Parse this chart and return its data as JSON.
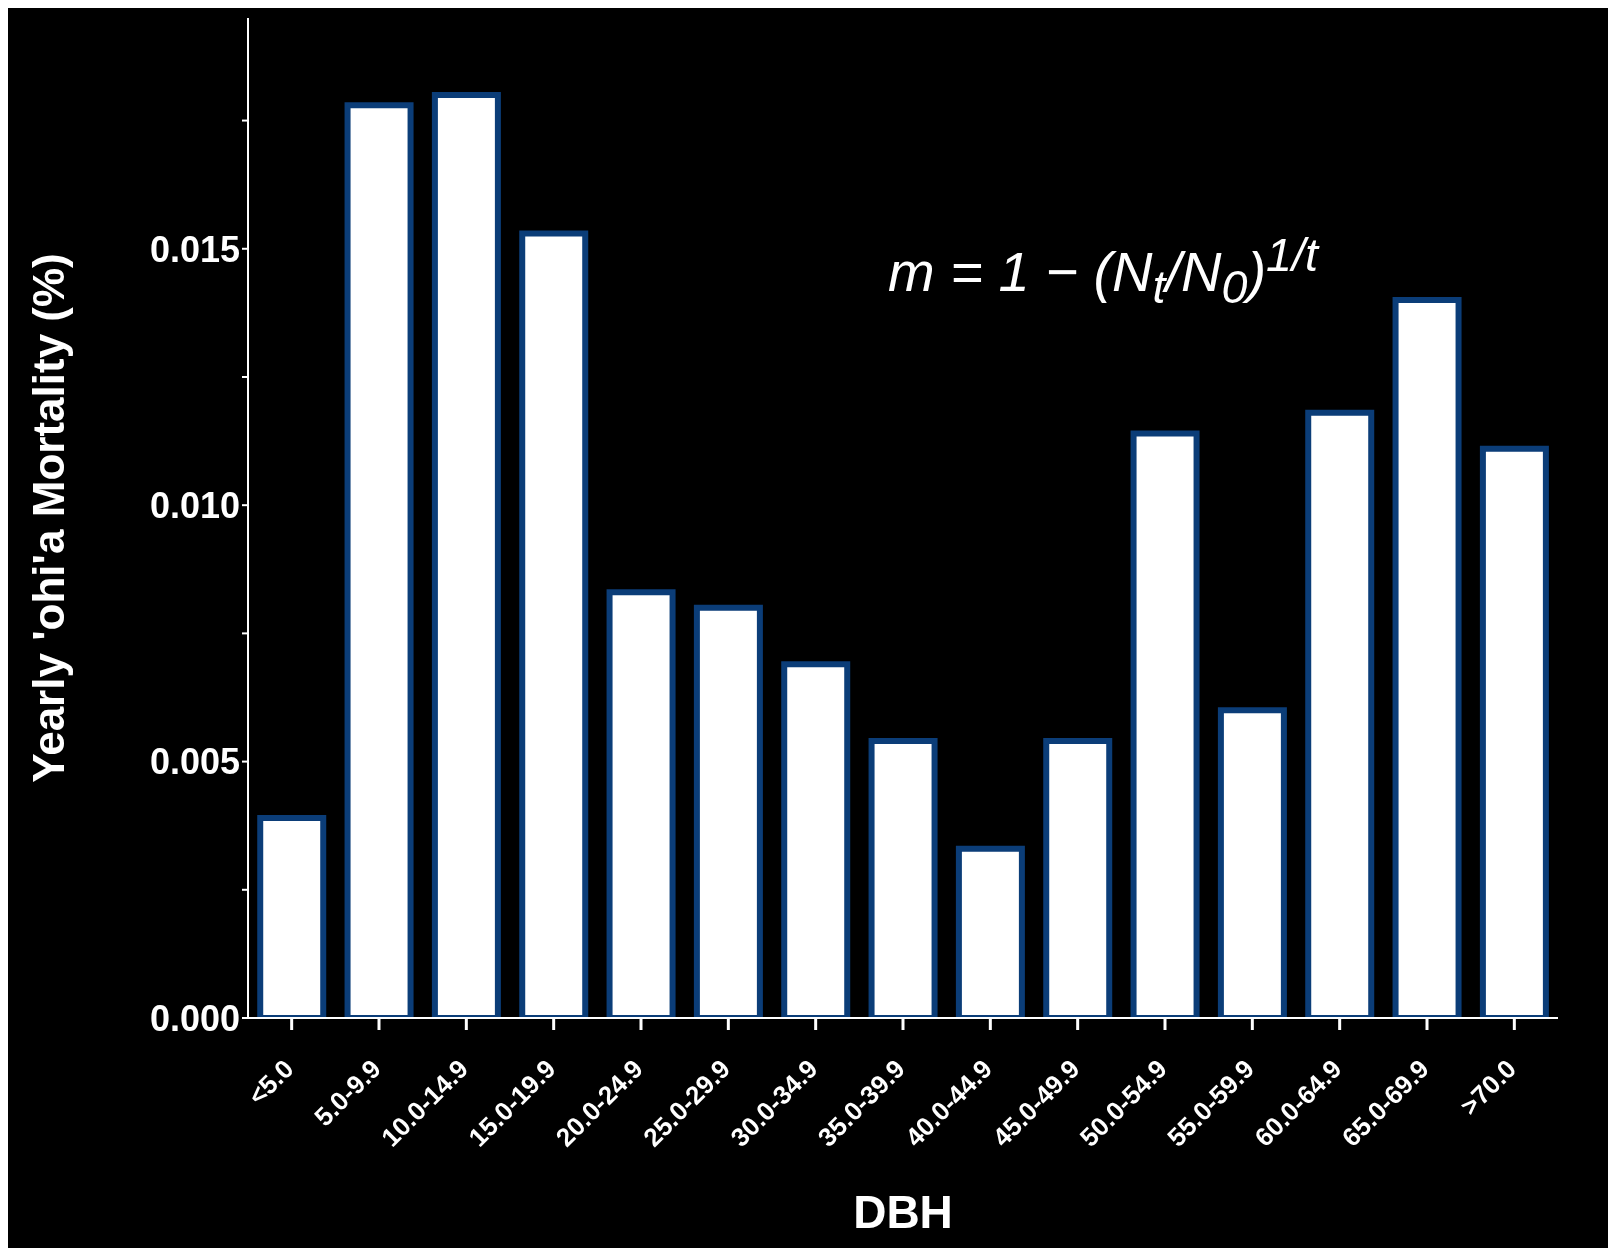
{
  "chart_data": {
    "type": "bar",
    "xlabel": "DBH",
    "ylabel": "Yearly 'ohi'a Mortality (%)",
    "categories": [
      "<5.0",
      "5.0-9.9",
      "10.0-14.9",
      "15.0-19.9",
      "20.0-24.9",
      "25.0-29.9",
      "30.0-34.9",
      "35.0-39.9",
      "40.0-44.9",
      "45.0-49.9",
      "50.0-54.9",
      "55.0-59.9",
      "60.0-64.9",
      "65.0-69.9",
      ">70.0"
    ],
    "values": [
      0.0039,
      0.0178,
      0.018,
      0.0153,
      0.0083,
      0.008,
      0.0069,
      0.0054,
      0.0033,
      0.0054,
      0.0114,
      0.006,
      0.0118,
      0.014,
      0.0111
    ],
    "color": "#ffffff",
    "ylim": [
      0,
      0.0195
    ],
    "yticks": [
      {
        "value": 0,
        "label": "0.000"
      },
      {
        "value": 0.0025,
        "label": null
      },
      {
        "value": 0.005,
        "label": "0.005"
      },
      {
        "value": 0.0075,
        "label": null
      },
      {
        "value": 0.01,
        "label": "0.010"
      },
      {
        "value": 0.0125,
        "label": null
      },
      {
        "value": 0.015,
        "label": "0.015"
      },
      {
        "value": 0.0175,
        "label": null
      }
    ],
    "annotations": [
      "m = 1 − (N$_{t}$/N$_{0}$)$^{1/t}$"
    ],
    "grid": false,
    "legend": false
  }
}
